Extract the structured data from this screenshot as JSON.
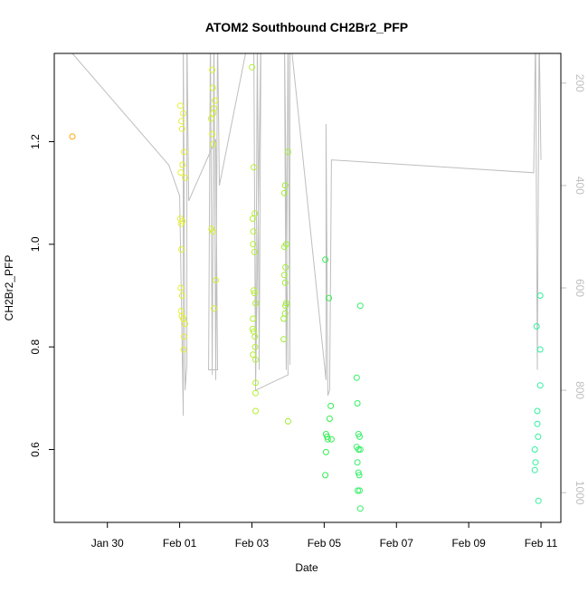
{
  "chart_data": {
    "type": "scatter",
    "title": "ATOM2 Southbound CH2Br2_PFP",
    "xlabel": "Date",
    "ylabel": "CH2Br2_PFP",
    "x_ticks": [
      "Jan 30",
      "Feb 01",
      "Feb 03",
      "Feb 05",
      "Feb 07",
      "Feb 09",
      "Feb 11"
    ],
    "x_tick_days": [
      30,
      32,
      34,
      36,
      38,
      40,
      42
    ],
    "xlim_days": [
      28.53,
      42.55
    ],
    "y_ticks": [
      0.6,
      0.8,
      1.0,
      1.2
    ],
    "ylim": [
      0.458,
      1.372
    ],
    "right_axis": {
      "ticks": [
        200,
        400,
        600,
        800,
        1000
      ],
      "ylim_reversed": [
        1058,
        142
      ],
      "color": "#bebebe"
    },
    "grid": false,
    "legend": "none",
    "series": [
      {
        "points": [
          {
            "x": 29.03,
            "y": 1.21,
            "color": "#ffa500"
          },
          {
            "x": 32.02,
            "y": 1.27,
            "color": "#e5f032"
          },
          {
            "x": 32.05,
            "y": 1.24,
            "color": "#e5f032"
          },
          {
            "x": 32.1,
            "y": 1.255,
            "color": "#e5f032"
          },
          {
            "x": 32.07,
            "y": 1.225,
            "color": "#e5f032"
          },
          {
            "x": 32.12,
            "y": 1.18,
            "color": "#e5f032"
          },
          {
            "x": 32.08,
            "y": 1.155,
            "color": "#e5f032"
          },
          {
            "x": 32.03,
            "y": 1.14,
            "color": "#e5f032"
          },
          {
            "x": 32.15,
            "y": 1.13,
            "color": "#e5f032"
          },
          {
            "x": 32.02,
            "y": 1.05,
            "color": "#e5f032"
          },
          {
            "x": 32.04,
            "y": 1.04,
            "color": "#e5f032"
          },
          {
            "x": 32.08,
            "y": 1.045,
            "color": "#e5f032"
          },
          {
            "x": 32.05,
            "y": 0.99,
            "color": "#e5f032"
          },
          {
            "x": 32.03,
            "y": 0.915,
            "color": "#e5f032"
          },
          {
            "x": 32.07,
            "y": 0.9,
            "color": "#e5f032"
          },
          {
            "x": 32.04,
            "y": 0.87,
            "color": "#e5f032"
          },
          {
            "x": 32.06,
            "y": 0.86,
            "color": "#e5f032"
          },
          {
            "x": 32.1,
            "y": 0.855,
            "color": "#e5f032"
          },
          {
            "x": 32.15,
            "y": 0.845,
            "color": "#e5f032"
          },
          {
            "x": 32.12,
            "y": 0.82,
            "color": "#e5f032"
          },
          {
            "x": 32.11,
            "y": 0.795,
            "color": "#e5f032"
          },
          {
            "x": 32.9,
            "y": 1.34,
            "color": "#daf032"
          },
          {
            "x": 32.92,
            "y": 1.305,
            "color": "#daf032"
          },
          {
            "x": 32.98,
            "y": 1.28,
            "color": "#daf032"
          },
          {
            "x": 32.95,
            "y": 1.265,
            "color": "#daf032"
          },
          {
            "x": 32.93,
            "y": 1.255,
            "color": "#daf032"
          },
          {
            "x": 32.87,
            "y": 1.245,
            "color": "#daf032"
          },
          {
            "x": 32.9,
            "y": 1.215,
            "color": "#daf032"
          },
          {
            "x": 32.93,
            "y": 1.195,
            "color": "#daf032"
          },
          {
            "x": 32.88,
            "y": 1.03,
            "color": "#daf032"
          },
          {
            "x": 32.92,
            "y": 1.025,
            "color": "#daf032"
          },
          {
            "x": 33.0,
            "y": 0.93,
            "color": "#daf032"
          },
          {
            "x": 32.95,
            "y": 0.875,
            "color": "#daf032"
          },
          {
            "x": 34.0,
            "y": 1.345,
            "color": "#b4f032"
          },
          {
            "x": 34.05,
            "y": 1.15,
            "color": "#b4f032"
          },
          {
            "x": 34.08,
            "y": 1.06,
            "color": "#b4f032"
          },
          {
            "x": 34.02,
            "y": 1.05,
            "color": "#b4f032"
          },
          {
            "x": 34.04,
            "y": 1.025,
            "color": "#b4f032"
          },
          {
            "x": 34.03,
            "y": 1.0,
            "color": "#b4f032"
          },
          {
            "x": 34.07,
            "y": 0.985,
            "color": "#b4f032"
          },
          {
            "x": 34.05,
            "y": 0.91,
            "color": "#b4f032"
          },
          {
            "x": 34.07,
            "y": 0.905,
            "color": "#b4f032"
          },
          {
            "x": 34.1,
            "y": 0.885,
            "color": "#b4f032"
          },
          {
            "x": 34.03,
            "y": 0.855,
            "color": "#b4f032"
          },
          {
            "x": 34.02,
            "y": 0.835,
            "color": "#b4f032"
          },
          {
            "x": 34.05,
            "y": 0.83,
            "color": "#b4f032"
          },
          {
            "x": 34.08,
            "y": 0.82,
            "color": "#b4f032"
          },
          {
            "x": 34.09,
            "y": 0.8,
            "color": "#b4f032"
          },
          {
            "x": 34.03,
            "y": 0.785,
            "color": "#b4f032"
          },
          {
            "x": 34.1,
            "y": 0.775,
            "color": "#b4f032"
          },
          {
            "x": 34.1,
            "y": 0.73,
            "color": "#b4f032"
          },
          {
            "x": 34.1,
            "y": 0.71,
            "color": "#b4f032"
          },
          {
            "x": 34.1,
            "y": 0.675,
            "color": "#b4f032"
          },
          {
            "x": 34.92,
            "y": 1.115,
            "color": "#9ef032"
          },
          {
            "x": 34.9,
            "y": 1.1,
            "color": "#9ef032"
          },
          {
            "x": 35.0,
            "y": 1.18,
            "color": "#9ef032"
          },
          {
            "x": 34.95,
            "y": 1.0,
            "color": "#9ef032"
          },
          {
            "x": 34.9,
            "y": 0.995,
            "color": "#9ef032"
          },
          {
            "x": 34.93,
            "y": 0.955,
            "color": "#9ef032"
          },
          {
            "x": 34.9,
            "y": 0.94,
            "color": "#9ef032"
          },
          {
            "x": 34.92,
            "y": 0.925,
            "color": "#9ef032"
          },
          {
            "x": 34.95,
            "y": 0.885,
            "color": "#9ef032"
          },
          {
            "x": 34.93,
            "y": 0.88,
            "color": "#9ef032"
          },
          {
            "x": 34.92,
            "y": 0.865,
            "color": "#9ef032"
          },
          {
            "x": 34.88,
            "y": 0.855,
            "color": "#9ef032"
          },
          {
            "x": 34.88,
            "y": 0.815,
            "color": "#9ef032"
          },
          {
            "x": 35.0,
            "y": 0.655,
            "color": "#9ef032"
          },
          {
            "x": 36.03,
            "y": 0.97,
            "color": "#32f050"
          },
          {
            "x": 36.13,
            "y": 0.895,
            "color": "#32f050"
          },
          {
            "x": 36.18,
            "y": 0.685,
            "color": "#32f050"
          },
          {
            "x": 36.15,
            "y": 0.66,
            "color": "#32f050"
          },
          {
            "x": 36.05,
            "y": 0.63,
            "color": "#32f050"
          },
          {
            "x": 36.08,
            "y": 0.625,
            "color": "#32f050"
          },
          {
            "x": 36.1,
            "y": 0.62,
            "color": "#32f050"
          },
          {
            "x": 36.2,
            "y": 0.62,
            "color": "#32f050"
          },
          {
            "x": 36.05,
            "y": 0.595,
            "color": "#32f050"
          },
          {
            "x": 36.03,
            "y": 0.55,
            "color": "#32f050"
          },
          {
            "x": 37.0,
            "y": 0.88,
            "color": "#32f064"
          },
          {
            "x": 36.9,
            "y": 0.74,
            "color": "#32f064"
          },
          {
            "x": 36.92,
            "y": 0.69,
            "color": "#32f064"
          },
          {
            "x": 36.95,
            "y": 0.63,
            "color": "#32f064"
          },
          {
            "x": 36.98,
            "y": 0.625,
            "color": "#32f064"
          },
          {
            "x": 36.9,
            "y": 0.605,
            "color": "#32f064"
          },
          {
            "x": 36.95,
            "y": 0.6,
            "color": "#32f064"
          },
          {
            "x": 37.0,
            "y": 0.6,
            "color": "#32f064"
          },
          {
            "x": 36.92,
            "y": 0.575,
            "color": "#32f064"
          },
          {
            "x": 36.95,
            "y": 0.555,
            "color": "#32f064"
          },
          {
            "x": 36.97,
            "y": 0.55,
            "color": "#32f064"
          },
          {
            "x": 36.93,
            "y": 0.52,
            "color": "#32f064"
          },
          {
            "x": 36.98,
            "y": 0.52,
            "color": "#32f064"
          },
          {
            "x": 37.0,
            "y": 0.485,
            "color": "#32f064"
          },
          {
            "x": 41.98,
            "y": 0.9,
            "color": "#32f0a0"
          },
          {
            "x": 41.88,
            "y": 0.84,
            "color": "#32f0a0"
          },
          {
            "x": 41.98,
            "y": 0.795,
            "color": "#32f0a0"
          },
          {
            "x": 41.98,
            "y": 0.725,
            "color": "#32f0a0"
          },
          {
            "x": 41.9,
            "y": 0.675,
            "color": "#32f0a0"
          },
          {
            "x": 41.9,
            "y": 0.65,
            "color": "#32f0a0"
          },
          {
            "x": 41.92,
            "y": 0.625,
            "color": "#32f0a0"
          },
          {
            "x": 41.83,
            "y": 0.6,
            "color": "#32f0a0"
          },
          {
            "x": 41.85,
            "y": 0.575,
            "color": "#32f0a0"
          },
          {
            "x": 41.83,
            "y": 0.56,
            "color": "#32f0a0"
          },
          {
            "x": 41.93,
            "y": 0.5,
            "color": "#32f0a0"
          }
        ]
      },
      {
        "type": "line",
        "axis": "right",
        "color": "#bebebe",
        "points": [
          [
            29.03,
            142
          ],
          [
            31.7,
            360
          ],
          [
            32.0,
            420
          ],
          [
            32.1,
            850
          ],
          [
            32.1,
            100
          ],
          [
            32.15,
            800
          ],
          [
            32.2,
            750
          ],
          [
            32.2,
            100
          ],
          [
            32.25,
            430
          ],
          [
            33.0,
            310
          ],
          [
            33.05,
            760
          ],
          [
            32.8,
            760
          ],
          [
            32.85,
            100
          ],
          [
            32.9,
            770
          ],
          [
            32.95,
            100
          ],
          [
            33.0,
            780
          ],
          [
            33.05,
            100
          ],
          [
            33.1,
            400
          ],
          [
            33.9,
            115
          ],
          [
            34.0,
            130
          ],
          [
            34.05,
            100
          ],
          [
            34.1,
            790
          ],
          [
            34.15,
            100
          ],
          [
            34.2,
            760
          ],
          [
            34.25,
            100
          ],
          [
            34.1,
            800
          ],
          [
            35.0,
            770
          ],
          [
            34.9,
            100
          ],
          [
            34.95,
            760
          ],
          [
            35.0,
            100
          ],
          [
            35.05,
            750
          ],
          [
            35.05,
            100
          ],
          [
            36.05,
            780
          ],
          [
            36.05,
            280
          ],
          [
            36.1,
            810
          ],
          [
            36.15,
            800
          ],
          [
            36.2,
            350
          ],
          [
            41.8,
            375
          ],
          [
            41.85,
            100
          ],
          [
            41.9,
            760
          ],
          [
            41.95,
            100
          ],
          [
            42.0,
            350
          ]
        ]
      }
    ]
  }
}
